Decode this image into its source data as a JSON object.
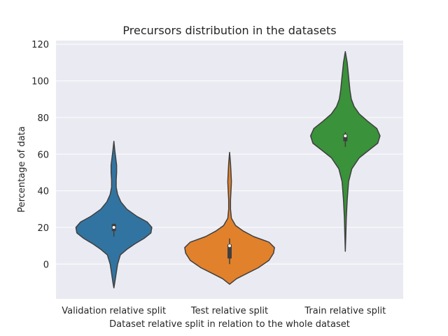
{
  "chart_data": {
    "type": "violin",
    "title": "Precursors distribution in the datasets",
    "xlabel": "Dataset relative split in relation to the whole dataset",
    "ylabel": "Percentage of data",
    "ylim": [
      -19,
      122
    ],
    "yticks": [
      0,
      20,
      40,
      60,
      80,
      100,
      120
    ],
    "grid": true,
    "style": "seaborn-darkgrid",
    "categories": [
      "Validation relative split",
      "Test relative split",
      "Train relative split"
    ],
    "colors": [
      "#3274a1",
      "#e1812c",
      "#3a923a"
    ],
    "violins": [
      {
        "category": "Validation relative split",
        "color": "#3274a1",
        "min": -13,
        "max": 67,
        "q1": 18,
        "median": 20,
        "q3": 22,
        "whisker_low": 15,
        "whisker_high": 22,
        "density": [
          [
            -13,
            0.0
          ],
          [
            -10,
            0.02
          ],
          [
            -5,
            0.05
          ],
          [
            0,
            0.08
          ],
          [
            5,
            0.14
          ],
          [
            8,
            0.28
          ],
          [
            11,
            0.45
          ],
          [
            14,
            0.65
          ],
          [
            17,
            0.8
          ],
          [
            20,
            0.82
          ],
          [
            23,
            0.72
          ],
          [
            26,
            0.5
          ],
          [
            30,
            0.28
          ],
          [
            34,
            0.15
          ],
          [
            38,
            0.08
          ],
          [
            42,
            0.05
          ],
          [
            46,
            0.05
          ],
          [
            50,
            0.06
          ],
          [
            54,
            0.06
          ],
          [
            58,
            0.04
          ],
          [
            62,
            0.02
          ],
          [
            67,
            0.0
          ]
        ]
      },
      {
        "category": "Test relative split",
        "color": "#e1812c",
        "min": -11,
        "max": 61,
        "q1": 3,
        "median": 10,
        "q3": 10,
        "whisker_low": 0,
        "whisker_high": 14,
        "density": [
          [
            -11,
            0.0
          ],
          [
            -8,
            0.15
          ],
          [
            -5,
            0.38
          ],
          [
            -2,
            0.62
          ],
          [
            2,
            0.85
          ],
          [
            6,
            0.95
          ],
          [
            9,
            0.97
          ],
          [
            12,
            0.85
          ],
          [
            15,
            0.52
          ],
          [
            18,
            0.3
          ],
          [
            21,
            0.13
          ],
          [
            25,
            0.04
          ],
          [
            30,
            0.02
          ],
          [
            35,
            0.02
          ],
          [
            40,
            0.03
          ],
          [
            45,
            0.04
          ],
          [
            50,
            0.03
          ],
          [
            55,
            0.02
          ],
          [
            61,
            0.0
          ]
        ]
      },
      {
        "category": "Train relative split",
        "color": "#3a923a",
        "min": 7,
        "max": 116,
        "q1": 67,
        "median": 70,
        "q3": 71,
        "whisker_low": 64,
        "whisker_high": 72,
        "density": [
          [
            7,
            0.0
          ],
          [
            15,
            0.01
          ],
          [
            25,
            0.02
          ],
          [
            35,
            0.04
          ],
          [
            45,
            0.07
          ],
          [
            52,
            0.14
          ],
          [
            58,
            0.3
          ],
          [
            62,
            0.5
          ],
          [
            66,
            0.7
          ],
          [
            70,
            0.75
          ],
          [
            74,
            0.68
          ],
          [
            78,
            0.48
          ],
          [
            82,
            0.3
          ],
          [
            86,
            0.19
          ],
          [
            90,
            0.13
          ],
          [
            95,
            0.1
          ],
          [
            100,
            0.08
          ],
          [
            105,
            0.06
          ],
          [
            110,
            0.04
          ],
          [
            116,
            0.0
          ]
        ]
      }
    ]
  }
}
